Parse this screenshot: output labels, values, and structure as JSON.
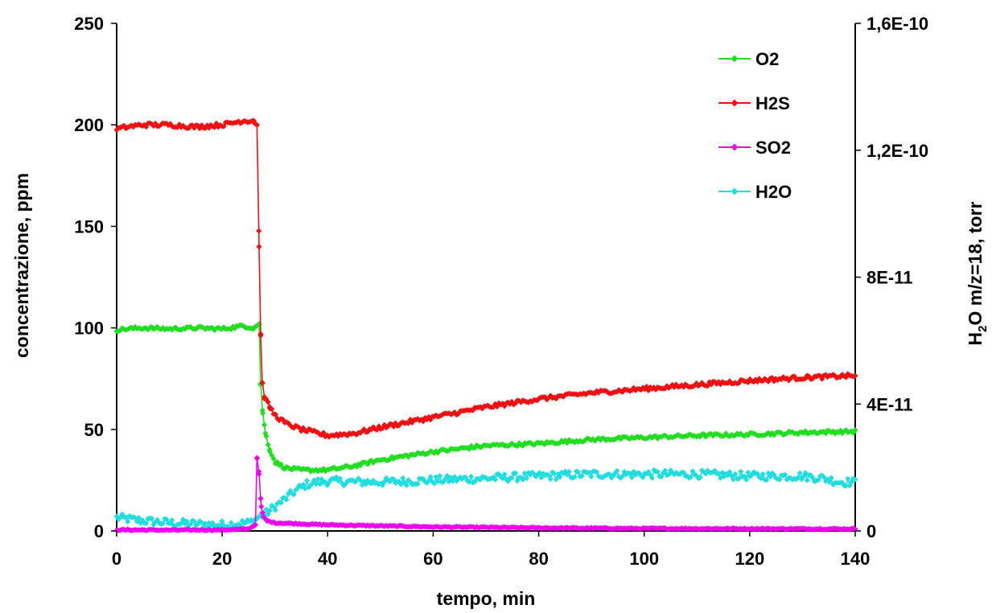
{
  "chart_data": {
    "type": "line",
    "title": "",
    "xlabel": "tempo, min",
    "ylabel": "concentrazione, ppm",
    "y2label_main": "H",
    "y2label_sub": "2",
    "y2label_rest": "O m/z=18, torr",
    "xlim": [
      0,
      140
    ],
    "ylim": [
      0,
      250
    ],
    "y2lim": [
      0,
      1.6e-10
    ],
    "x_ticks": [
      0,
      20,
      40,
      60,
      80,
      100,
      120,
      140
    ],
    "x_tick_labels": [
      "0",
      "20",
      "40",
      "60",
      "80",
      "100",
      "120",
      "140"
    ],
    "y_ticks": [
      0,
      50,
      100,
      150,
      200,
      250
    ],
    "y_tick_labels": [
      "0",
      "50",
      "100",
      "150",
      "200",
      "250"
    ],
    "y2_ticks": [
      0,
      4e-11,
      8e-11,
      1.2e-10,
      1.6e-10
    ],
    "y2_tick_labels": [
      "0",
      "4E-11",
      "8E-11",
      "1,2E-10",
      "1,6E-10"
    ],
    "grid": false,
    "legend_position": "top-right",
    "series": [
      {
        "name": "O2",
        "color": "#22dd22",
        "axis": "left",
        "x": [
          0,
          2,
          5,
          10,
          15,
          20,
          24,
          26,
          27,
          27.3,
          27.7,
          28.2,
          29,
          30,
          32,
          35,
          40,
          45,
          50,
          60,
          70,
          80,
          90,
          100,
          110,
          120,
          130,
          140
        ],
        "y": [
          99,
          99.5,
          100,
          99.5,
          100,
          99.5,
          101,
          100,
          102,
          72,
          58,
          48,
          40,
          34,
          31,
          30,
          30,
          32,
          35,
          39,
          42,
          43,
          45,
          46,
          47,
          47.5,
          48.5,
          49
        ],
        "noise": 0.8
      },
      {
        "name": "H2S",
        "color": "#ee1111",
        "axis": "left",
        "x": [
          0,
          2,
          5,
          10,
          15,
          20,
          24,
          26,
          26.6,
          27,
          27.3,
          27.6,
          28,
          29,
          30,
          32,
          35,
          40,
          45,
          50,
          60,
          70,
          80,
          90,
          100,
          110,
          120,
          130,
          140
        ],
        "y": [
          198,
          199,
          200,
          200,
          199,
          200,
          202,
          202,
          200,
          140,
          97,
          73,
          66,
          61,
          57,
          53,
          50,
          47,
          48,
          51,
          56,
          61,
          65,
          68,
          70,
          72,
          74,
          75.5,
          76.5
        ],
        "noise": 1.0
      },
      {
        "name": "SO2",
        "color": "#ee00ee",
        "axis": "left",
        "x": [
          0,
          5,
          10,
          15,
          20,
          25,
          26.3,
          26.6,
          27,
          27.4,
          27.8,
          28.5,
          30,
          35,
          40,
          50,
          60,
          80,
          100,
          120,
          140
        ],
        "y": [
          0.5,
          0.5,
          0.4,
          0.5,
          0.5,
          1.0,
          3,
          36,
          28,
          12,
          7,
          5,
          4,
          3.5,
          3,
          2.5,
          2,
          1.5,
          1.2,
          1.1,
          1
        ],
        "noise": 0.3
      },
      {
        "name": "H2O",
        "color": "#22dddd",
        "axis": "right",
        "x": [
          0,
          5,
          10,
          15,
          20,
          25,
          26,
          27,
          28,
          29,
          30,
          32,
          34,
          36,
          38,
          40,
          45,
          50,
          60,
          70,
          80,
          90,
          100,
          110,
          120,
          130,
          134,
          137,
          140
        ],
        "y": [
          4.2e-12,
          3.2e-12,
          2.6e-12,
          2.2e-12,
          1.9e-12,
          2.6e-12,
          3.2e-12,
          4.5e-12,
          5.1e-12,
          6.4e-12,
          7.7e-12,
          1.02e-11,
          1.28e-11,
          1.47e-11,
          1.54e-11,
          1.57e-11,
          1.55e-11,
          1.54e-11,
          1.6e-11,
          1.66e-11,
          1.73e-11,
          1.79e-11,
          1.79e-11,
          1.79e-11,
          1.73e-11,
          1.73e-11,
          1.66e-11,
          1.54e-11,
          1.54e-11
        ],
        "noise": 1.3e-12
      }
    ]
  }
}
